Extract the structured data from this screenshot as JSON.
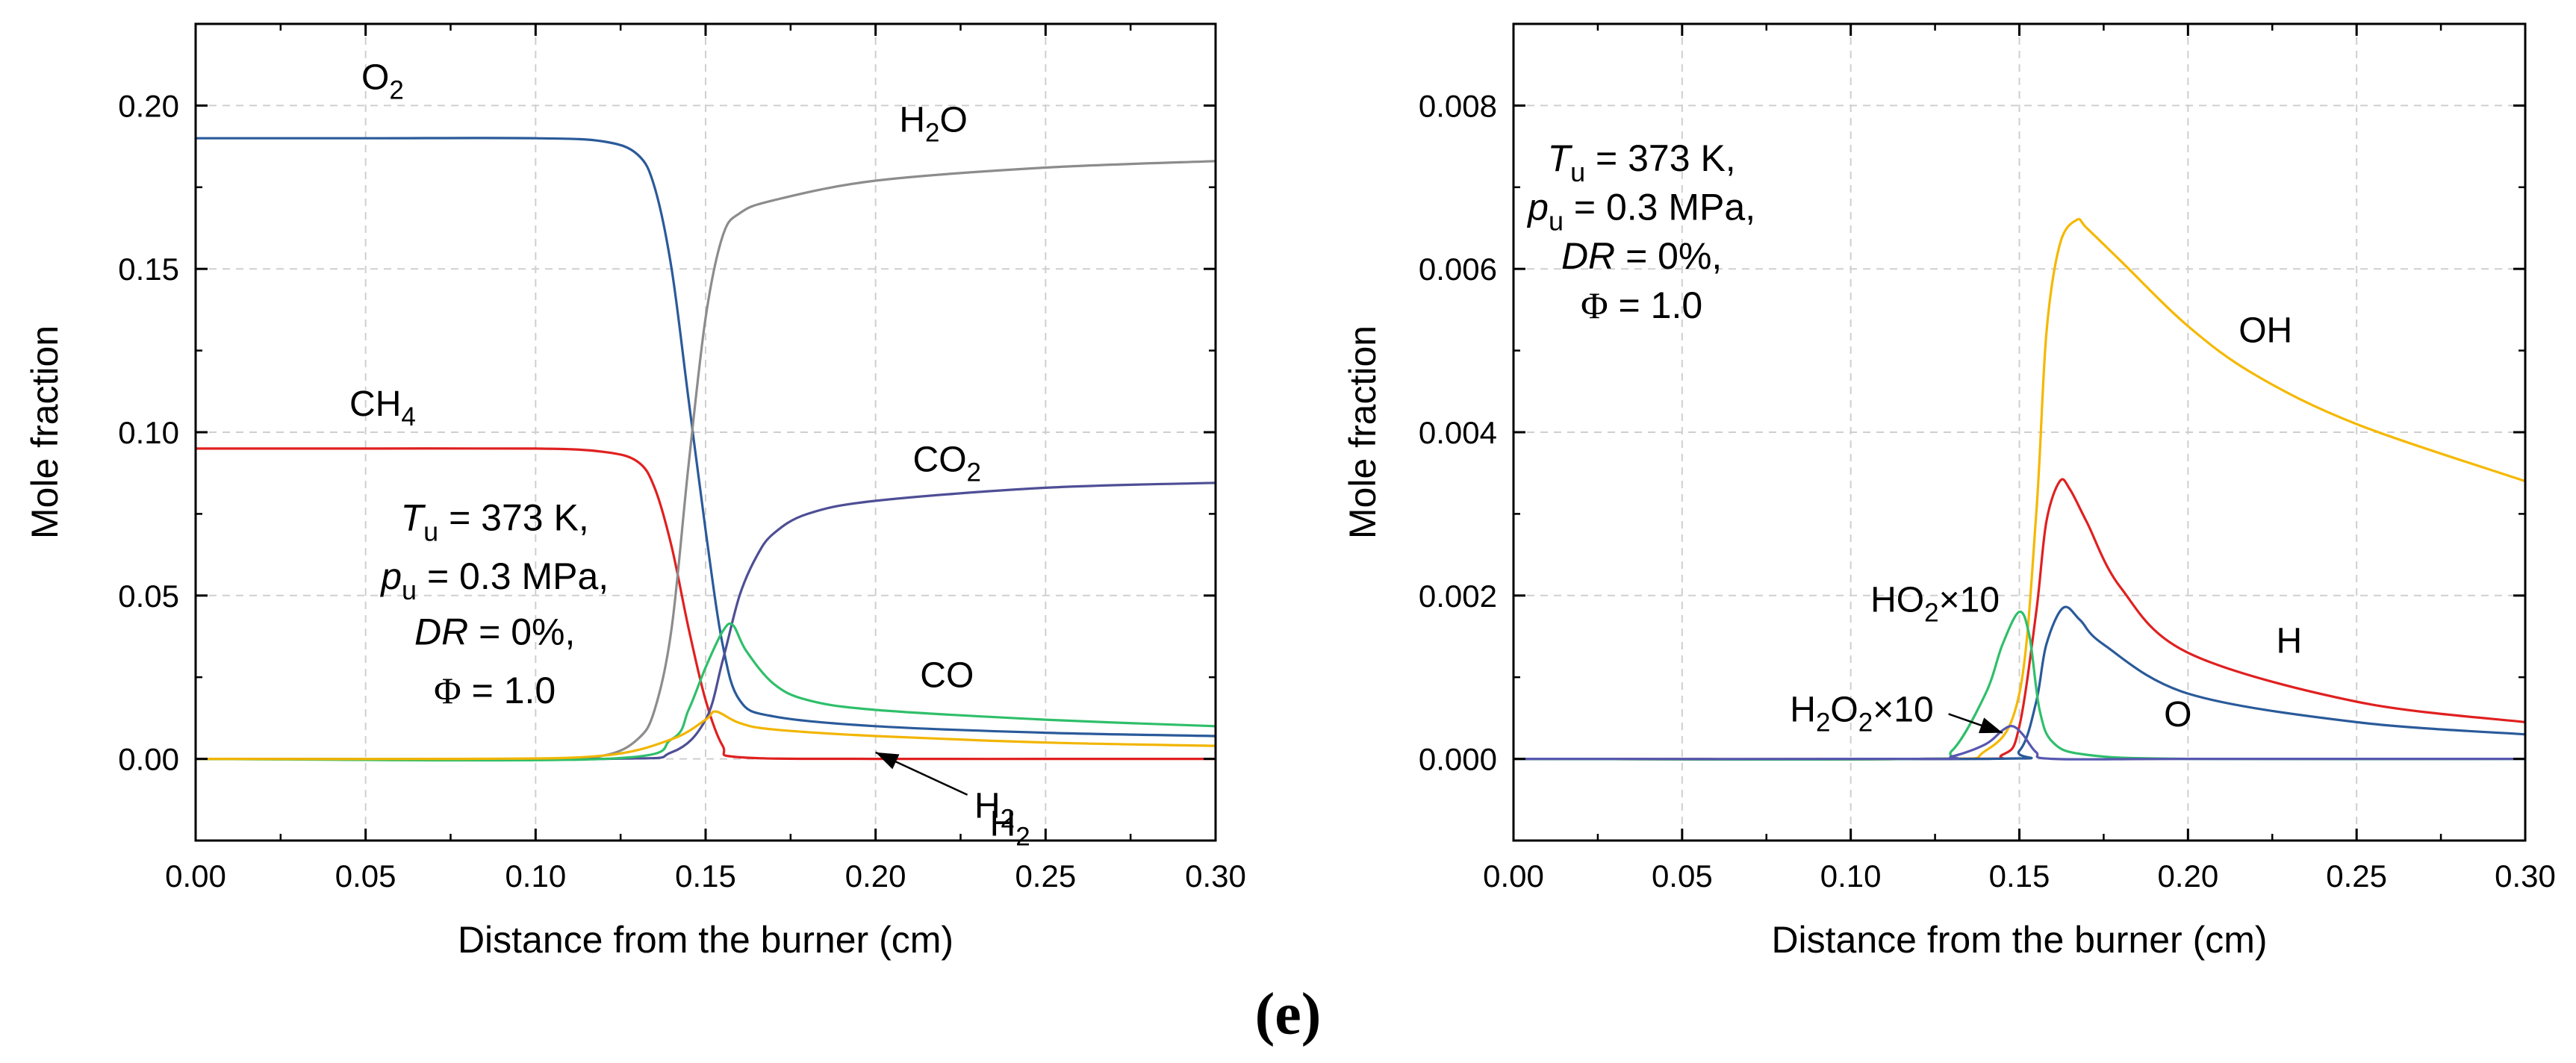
{
  "panel_label": "(e)",
  "colors": {
    "O2": "#2a5a9a",
    "CH4": "#e02020",
    "H2O": "#8c8c8c",
    "CO2": "#4e4e96",
    "CO": "#2fbf6a",
    "H2": "#f2b500",
    "OH": "#f5b800",
    "H": "#e02020",
    "O": "#2a5a9a",
    "HO2": "#2fbf6a",
    "H2O2": "#5757b0"
  },
  "chart_data": [
    {
      "type": "line",
      "xlabel": "Distance from the burner (cm)",
      "ylabel": "Mole fraction",
      "xlim": [
        0.0,
        0.3
      ],
      "ylim": [
        -0.025,
        0.225
      ],
      "xticks": [
        "0.00",
        "0.05",
        "0.10",
        "0.15",
        "0.20",
        "0.25",
        "0.30"
      ],
      "yticks": [
        "0.00",
        "0.05",
        "0.10",
        "0.15",
        "0.20"
      ],
      "conditions": {
        "Tu": {
          "symbol": "T",
          "sub": "u",
          "rest": " = 373 K,"
        },
        "pu": {
          "symbol": "p",
          "sub": "u",
          "rest": " = 0.3 MPa,"
        },
        "DR": {
          "symbol": "DR",
          "rest": " = 0%,"
        },
        "phi": {
          "symbol": "Φ",
          "rest": " = 1.0"
        }
      },
      "series": [
        {
          "name": "O2",
          "label": {
            "main": "O",
            "sub": "2"
          },
          "color": "#2a5a9a",
          "x": [
            0,
            0.05,
            0.1,
            0.12,
            0.13,
            0.135,
            0.14,
            0.145,
            0.15,
            0.155,
            0.16,
            0.17,
            0.2,
            0.25,
            0.3
          ],
          "y": [
            0.19,
            0.19,
            0.19,
            0.189,
            0.185,
            0.175,
            0.15,
            0.11,
            0.07,
            0.035,
            0.018,
            0.013,
            0.01,
            0.008,
            0.007
          ]
        },
        {
          "name": "CH4",
          "label": {
            "main": "CH",
            "sub": "4"
          },
          "color": "#e02020",
          "x": [
            0,
            0.05,
            0.1,
            0.12,
            0.13,
            0.135,
            0.14,
            0.145,
            0.15,
            0.155,
            0.16,
            0.2,
            0.25,
            0.3
          ],
          "y": [
            0.095,
            0.095,
            0.095,
            0.094,
            0.091,
            0.083,
            0.065,
            0.04,
            0.018,
            0.004,
            0.0005,
            0.0,
            0.0,
            0.0
          ]
        },
        {
          "name": "H2O",
          "label": {
            "main": "H",
            "sub": "2",
            "tail": "O"
          },
          "color": "#8c8c8c",
          "x": [
            0,
            0.1,
            0.12,
            0.13,
            0.135,
            0.14,
            0.145,
            0.15,
            0.155,
            0.16,
            0.17,
            0.2,
            0.25,
            0.3
          ],
          "y": [
            0.0,
            0.0,
            0.001,
            0.006,
            0.015,
            0.04,
            0.09,
            0.135,
            0.16,
            0.167,
            0.171,
            0.177,
            0.181,
            0.183
          ]
        },
        {
          "name": "CO2",
          "label": {
            "main": "CO",
            "sub": "2"
          },
          "color": "#4e4e96",
          "x": [
            0,
            0.12,
            0.14,
            0.15,
            0.155,
            0.16,
            0.165,
            0.17,
            0.18,
            0.2,
            0.25,
            0.3
          ],
          "y": [
            0.0,
            0.0,
            0.002,
            0.012,
            0.03,
            0.05,
            0.062,
            0.069,
            0.075,
            0.079,
            0.083,
            0.0845
          ]
        },
        {
          "name": "CO",
          "label": {
            "main": "CO"
          },
          "color": "#2fbf6a",
          "x": [
            0,
            0.12,
            0.14,
            0.145,
            0.15,
            0.155,
            0.158,
            0.162,
            0.17,
            0.18,
            0.2,
            0.25,
            0.3
          ],
          "y": [
            0.0,
            0.0,
            0.006,
            0.015,
            0.028,
            0.039,
            0.041,
            0.033,
            0.023,
            0.018,
            0.015,
            0.012,
            0.01
          ]
        },
        {
          "name": "H2",
          "label": {
            "main": "H",
            "sub": "2"
          },
          "color": "#f2b500",
          "x": [
            0,
            0.08,
            0.12,
            0.14,
            0.15,
            0.153,
            0.16,
            0.17,
            0.2,
            0.25,
            0.3
          ],
          "y": [
            0.0,
            0.0,
            0.001,
            0.006,
            0.012,
            0.0145,
            0.011,
            0.009,
            0.007,
            0.005,
            0.004
          ]
        }
      ],
      "annotations": [
        {
          "text": "H2",
          "label": {
            "main": "H",
            "sub": "2"
          },
          "arrow_to_x": 0.2,
          "arrow_to_y": 0.002
        }
      ]
    },
    {
      "type": "line",
      "xlabel": "Distance from the burner (cm)",
      "ylabel": "Mole fraction",
      "xlim": [
        0.0,
        0.3
      ],
      "ylim": [
        -0.001,
        0.009
      ],
      "xticks": [
        "0.00",
        "0.05",
        "0.10",
        "0.15",
        "0.20",
        "0.25",
        "0.30"
      ],
      "yticks": [
        "0.000",
        "0.002",
        "0.004",
        "0.006",
        "0.008"
      ],
      "conditions": {
        "Tu": {
          "symbol": "T",
          "sub": "u",
          "rest": " = 373 K,"
        },
        "pu": {
          "symbol": "p",
          "sub": "u",
          "rest": " = 0.3 MPa,"
        },
        "DR": {
          "symbol": "DR",
          "rest": " = 0%,"
        },
        "phi": {
          "symbol": "Φ",
          "rest": " = 1.0"
        }
      },
      "series": [
        {
          "name": "OH",
          "label": {
            "main": "OH"
          },
          "color": "#f5b800",
          "x": [
            0,
            0.12,
            0.14,
            0.15,
            0.155,
            0.158,
            0.162,
            0.167,
            0.17,
            0.18,
            0.2,
            0.22,
            0.25,
            0.3
          ],
          "y": [
            0.0,
            0.0,
            0.0001,
            0.0008,
            0.003,
            0.0052,
            0.0063,
            0.0066,
            0.0065,
            0.0061,
            0.0053,
            0.0047,
            0.0041,
            0.0034
          ]
        },
        {
          "name": "H",
          "label": {
            "main": "H"
          },
          "color": "#e02020",
          "x": [
            0,
            0.13,
            0.145,
            0.15,
            0.155,
            0.158,
            0.162,
            0.165,
            0.17,
            0.18,
            0.2,
            0.25,
            0.3
          ],
          "y": [
            0.0,
            0.0,
            5e-05,
            0.0004,
            0.0018,
            0.0029,
            0.0034,
            0.0033,
            0.0029,
            0.0021,
            0.0013,
            0.0007,
            0.00045
          ]
        },
        {
          "name": "O",
          "label": {
            "main": "O"
          },
          "color": "#2a5a9a",
          "x": [
            0,
            0.14,
            0.15,
            0.155,
            0.158,
            0.163,
            0.168,
            0.175,
            0.2,
            0.25,
            0.3
          ],
          "y": [
            0.0,
            0.0,
            0.0001,
            0.0007,
            0.0014,
            0.00185,
            0.0017,
            0.0014,
            0.0008,
            0.00045,
            0.0003
          ]
        },
        {
          "name": "HO2x10",
          "label": {
            "main": "HO",
            "sub": "2",
            "tail": "×10"
          },
          "color": "#2fbf6a",
          "x": [
            0,
            0.12,
            0.13,
            0.14,
            0.145,
            0.15,
            0.153,
            0.156,
            0.16,
            0.17,
            0.2,
            0.3
          ],
          "y": [
            0.0,
            0.0,
            0.0001,
            0.0008,
            0.0014,
            0.0018,
            0.0015,
            0.0006,
            0.0002,
            5e-05,
            0.0,
            0.0
          ]
        },
        {
          "name": "H2O2x10",
          "label": {
            "main": "H",
            "sub": "2",
            "mid": "O",
            "sub2": "2",
            "tail": "×10"
          },
          "color": "#5757b0",
          "x": [
            0,
            0.12,
            0.13,
            0.14,
            0.145,
            0.148,
            0.151,
            0.155,
            0.16,
            0.2,
            0.3
          ],
          "y": [
            0.0,
            0.0,
            3e-05,
            0.00018,
            0.00035,
            0.0004,
            0.0003,
            8e-05,
            0.0,
            0.0,
            0.0
          ]
        }
      ],
      "annotations": [
        {
          "text": "H2O2×10",
          "label": {
            "main": "H",
            "sub": "2",
            "mid": "O",
            "sub2": "2",
            "tail": "×10"
          },
          "arrow_to_x": 0.145,
          "arrow_to_y": 0.00032
        }
      ]
    }
  ]
}
